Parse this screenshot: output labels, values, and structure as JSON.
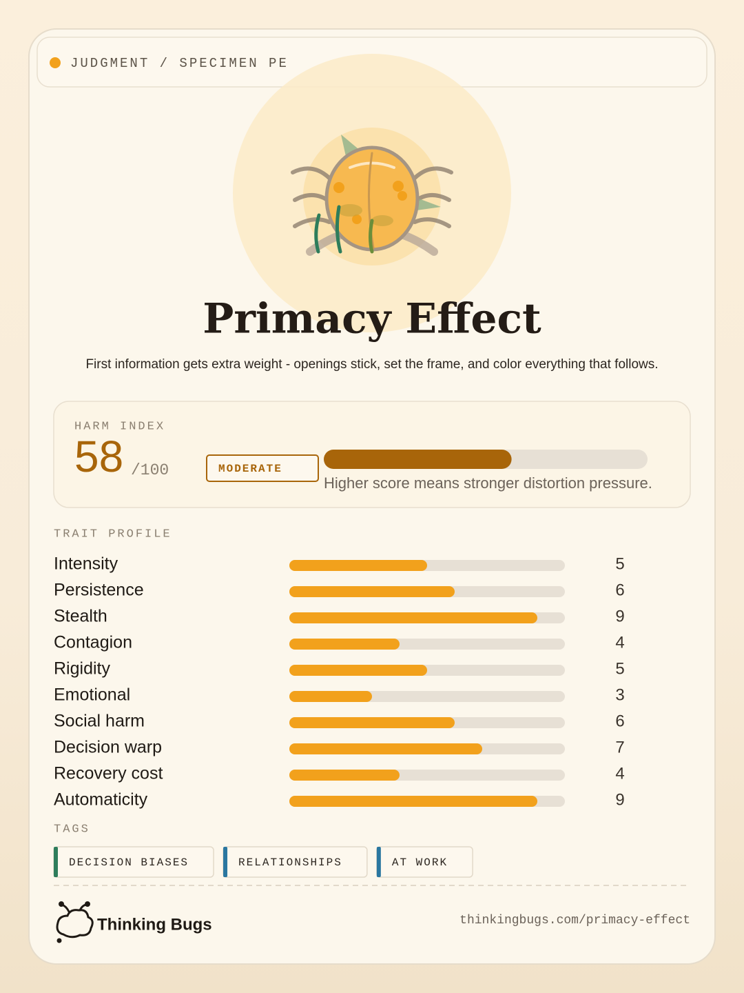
{
  "header": {
    "breadcrumb": "JUDGMENT / SPECIMEN PE"
  },
  "title": "Primacy Effect",
  "description": "First information gets extra weight - openings stick, set the frame, and color everything that follows.",
  "harm_index": {
    "label": "HARM INDEX",
    "value": 58,
    "scale_label": "/100",
    "max": 100,
    "level": "MODERATE",
    "caption": "Higher score means stronger distortion pressure."
  },
  "traits": {
    "label": "TRAIT PROFILE",
    "max": 10,
    "color": "#f2a11c",
    "items": [
      {
        "name": "Intensity",
        "value": 5
      },
      {
        "name": "Persistence",
        "value": 6
      },
      {
        "name": "Stealth",
        "value": 9
      },
      {
        "name": "Contagion",
        "value": 4
      },
      {
        "name": "Rigidity",
        "value": 5
      },
      {
        "name": "Emotional",
        "value": 3
      },
      {
        "name": "Social harm",
        "value": 6
      },
      {
        "name": "Decision warp",
        "value": 7
      },
      {
        "name": "Recovery cost",
        "value": 4
      },
      {
        "name": "Automaticity",
        "value": 9
      }
    ]
  },
  "tags": {
    "label": "TAGS",
    "items": [
      {
        "text": "DECISION BIASES",
        "color": "#2e7d5b"
      },
      {
        "text": "RELATIONSHIPS",
        "color": "#2a77a0"
      },
      {
        "text": "AT WORK",
        "color": "#2a77a0"
      }
    ]
  },
  "footer": {
    "brand": "Thinking Bugs",
    "url": "thinkingbugs.com/primacy-effect"
  }
}
